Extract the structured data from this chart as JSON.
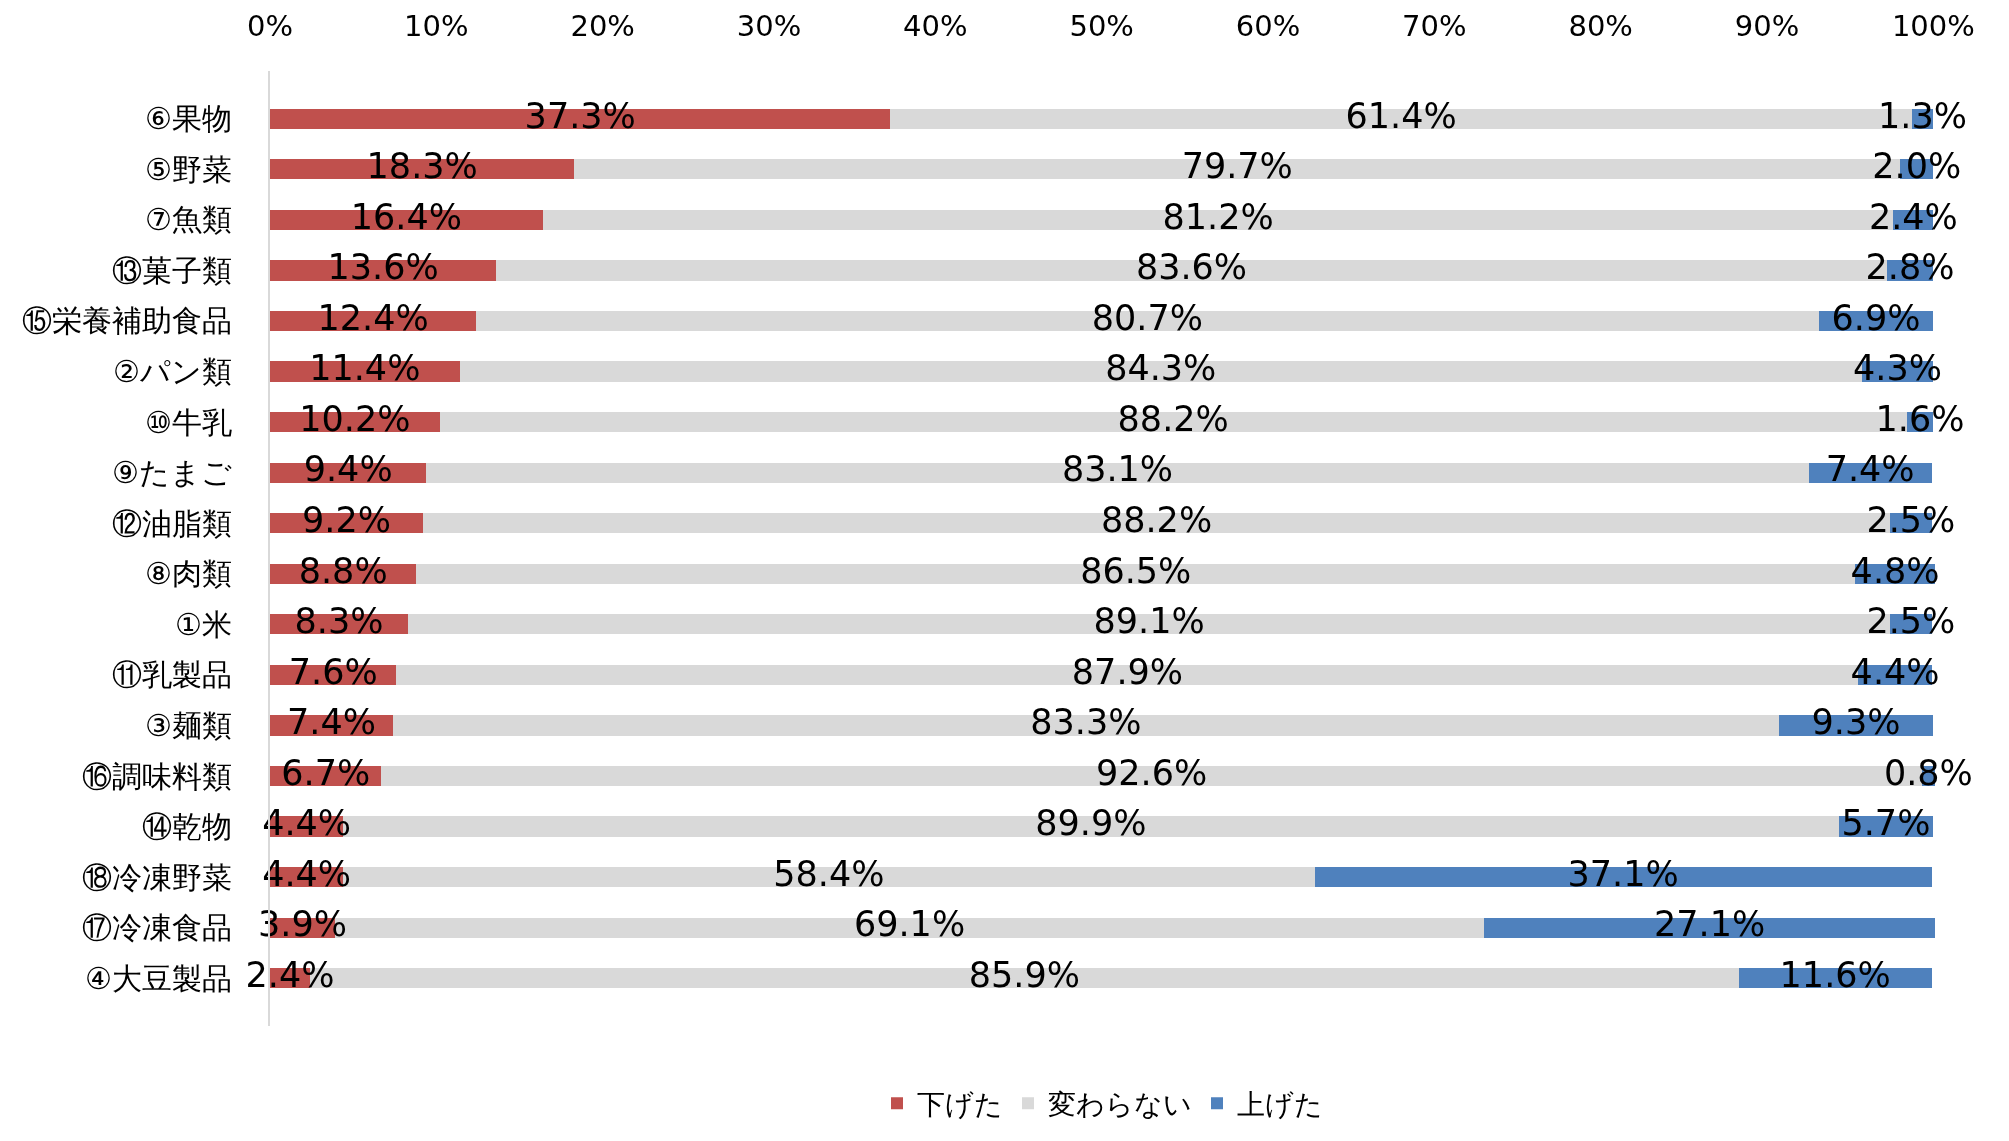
{
  "chart_data": {
    "type": "bar",
    "orientation": "horizontal",
    "stacked": true,
    "categories": [
      "⑥果物",
      "⑤野菜",
      "⑦魚類",
      "⑬菓子類",
      "⑮栄養補助食品",
      "②パン類",
      "⑩牛乳",
      "⑨たまご",
      "⑫油脂類",
      "⑧肉類",
      "①米",
      "⑪乳製品",
      "③麺類",
      "⑯調味料類",
      "⑭乾物",
      "⑱冷凍野菜",
      "⑰冷凍食品",
      "④大豆製品"
    ],
    "series": [
      {
        "name": "下げた",
        "color": "#c0504d",
        "values": [
          37.3,
          18.3,
          16.4,
          13.6,
          12.4,
          11.4,
          10.2,
          9.4,
          9.2,
          8.8,
          8.3,
          7.6,
          7.4,
          6.7,
          4.4,
          4.4,
          3.9,
          2.4
        ],
        "value_labels": [
          "37.3%",
          "18.3%",
          "16.4%",
          "13.6%",
          "12.4%",
          "11.4%",
          "10.2%",
          "9.4%",
          "9.2%",
          "8.8%",
          "8.3%",
          "7.6%",
          "7.4%",
          "6.7%",
          "4.4%",
          "4.4%",
          "3.9%",
          "2.4%"
        ]
      },
      {
        "name": "変わらない",
        "color": "#d9d9d9",
        "values": [
          61.4,
          79.7,
          81.2,
          83.6,
          80.7,
          84.3,
          88.2,
          83.1,
          88.2,
          86.5,
          89.1,
          87.9,
          83.3,
          92.6,
          89.9,
          58.4,
          69.1,
          85.9
        ],
        "value_labels": [
          "61.4%",
          "79.7%",
          "81.2%",
          "83.6%",
          "80.7%",
          "84.3%",
          "88.2%",
          "83.1%",
          "88.2%",
          "86.5%",
          "89.1%",
          "87.9%",
          "83.3%",
          "92.6%",
          "89.9%",
          "58.4%",
          "69.1%",
          "85.9%"
        ]
      },
      {
        "name": "上げた",
        "color": "#4f81bd",
        "values": [
          1.3,
          2.0,
          2.4,
          2.8,
          6.9,
          4.3,
          1.6,
          7.4,
          2.5,
          4.8,
          2.5,
          4.4,
          9.3,
          0.8,
          5.7,
          37.1,
          27.1,
          11.6
        ],
        "value_labels": [
          "1.3%",
          "2.0%",
          "2.4%",
          "2.8%",
          "6.9%",
          "4.3%",
          "1.6%",
          "7.4%",
          "2.5%",
          "4.8%",
          "2.5%",
          "4.4%",
          "9.3%",
          "0.8%",
          "5.7%",
          "37.1%",
          "27.1%",
          "11.6%"
        ]
      }
    ],
    "xlim": [
      0,
      100.1
    ],
    "xticks": [
      {
        "value": 0,
        "label": "0%"
      },
      {
        "value": 10,
        "label": "10%"
      },
      {
        "value": 20,
        "label": "20%"
      },
      {
        "value": 30,
        "label": "30%"
      },
      {
        "value": 40,
        "label": "40%"
      },
      {
        "value": 50,
        "label": "50%"
      },
      {
        "value": 60,
        "label": "60%"
      },
      {
        "value": 70,
        "label": "70%"
      },
      {
        "value": 80,
        "label": "80%"
      },
      {
        "value": 90,
        "label": "90%"
      },
      {
        "value": 100,
        "label": "100%"
      }
    ],
    "grid": false,
    "legend": "bottom"
  }
}
